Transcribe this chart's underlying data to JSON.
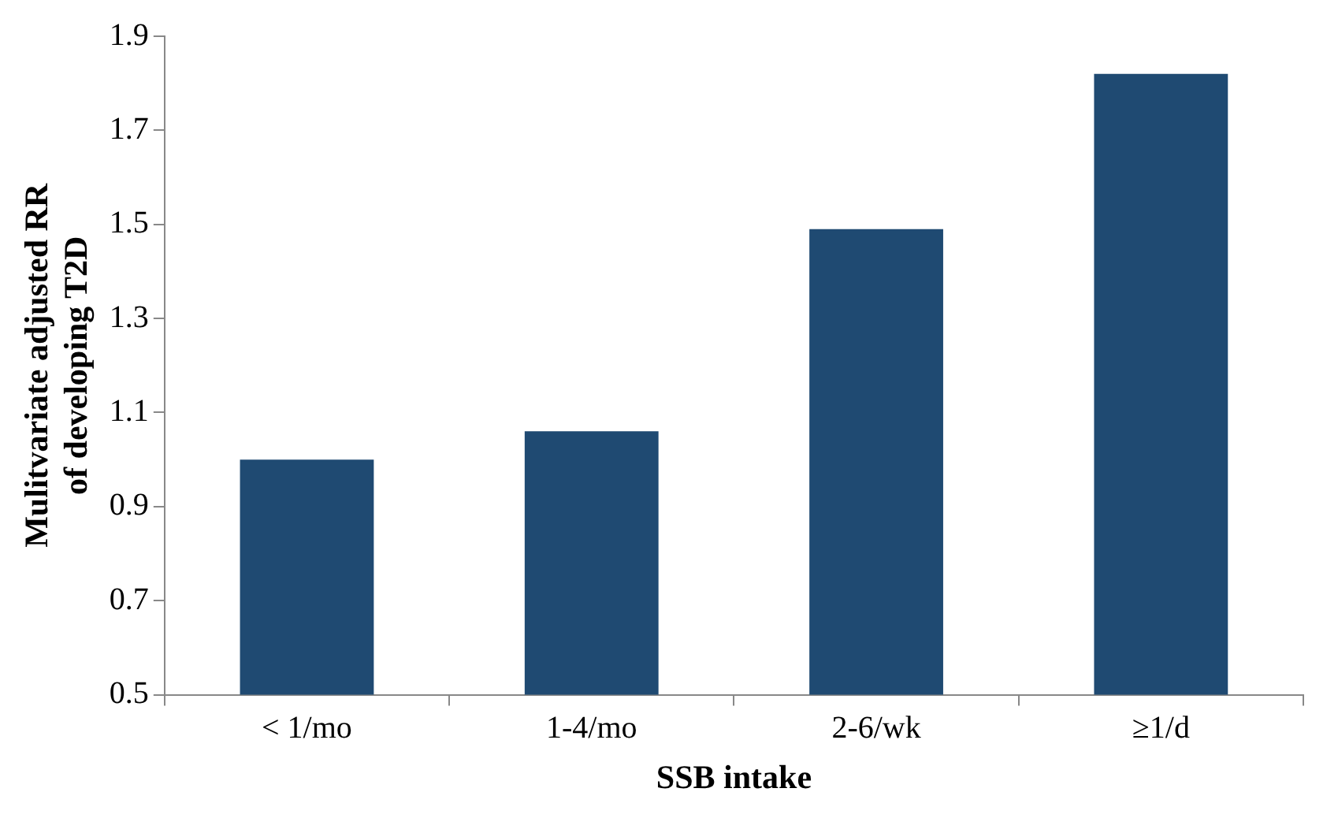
{
  "chart_data": {
    "type": "bar",
    "xlabel": "SSB intake",
    "ylabel": "Mulitvariate adjusted RR\nof developing T2D",
    "categories": [
      "< 1/mo",
      "1-4/mo",
      "2-6/wk",
      "≥1/d"
    ],
    "values": [
      1.0,
      1.06,
      1.49,
      1.82
    ],
    "color": "#1f4a72",
    "ylim": [
      0.5,
      1.9
    ],
    "yticks": [
      0.5,
      0.7,
      0.9,
      1.1,
      1.3,
      1.5,
      1.7,
      1.9
    ],
    "grid": false,
    "legend": false
  }
}
